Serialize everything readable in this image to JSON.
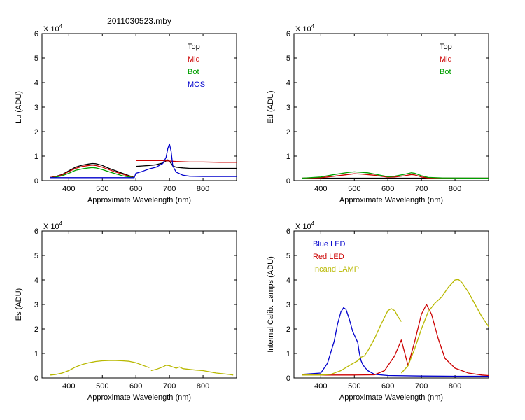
{
  "figure_title": "2011030523.mby",
  "chart_data": [
    {
      "type": "line",
      "panel": "top-left",
      "title": "2011030523.mby",
      "ylabel": "Lu (ADU)",
      "xlabel": "Approximate Wavelength (nm)",
      "exponent_label": "X 10",
      "exponent_power": "4",
      "xlim": [
        320,
        900
      ],
      "ylim": [
        0,
        6
      ],
      "xticks": [
        "400",
        "500",
        "600",
        "700",
        "800"
      ],
      "yticks": [
        "0",
        "1",
        "2",
        "3",
        "4",
        "5",
        "6"
      ],
      "legend_position": "top-right",
      "series": [
        {
          "name": "Top",
          "color": "#000000",
          "x": [
            345,
            360,
            380,
            400,
            420,
            440,
            460,
            470,
            480,
            500,
            520,
            540,
            560,
            580,
            595
          ],
          "y": [
            0.13,
            0.17,
            0.25,
            0.4,
            0.55,
            0.63,
            0.68,
            0.7,
            0.69,
            0.62,
            0.5,
            0.4,
            0.3,
            0.2,
            0.13
          ]
        },
        {
          "name": "Top",
          "color": "#000000",
          "x": [
            600,
            620,
            640,
            660,
            680,
            690,
            695,
            700,
            705,
            710,
            720,
            740,
            760,
            800,
            840,
            900
          ],
          "y": [
            0.58,
            0.6,
            0.62,
            0.65,
            0.72,
            0.8,
            0.85,
            0.8,
            0.7,
            0.6,
            0.55,
            0.52,
            0.5,
            0.5,
            0.5,
            0.5
          ]
        },
        {
          "name": "Mid",
          "color": "#cc0000",
          "x": [
            345,
            360,
            380,
            400,
            420,
            440,
            460,
            470,
            480,
            500,
            520,
            540,
            560,
            580,
            595
          ],
          "y": [
            0.13,
            0.16,
            0.23,
            0.37,
            0.5,
            0.58,
            0.62,
            0.63,
            0.62,
            0.55,
            0.45,
            0.35,
            0.27,
            0.18,
            0.12
          ]
        },
        {
          "name": "Mid",
          "color": "#cc0000",
          "x": [
            600,
            650,
            680,
            700,
            720,
            760,
            800,
            850,
            900
          ],
          "y": [
            0.82,
            0.82,
            0.82,
            0.8,
            0.78,
            0.76,
            0.76,
            0.75,
            0.75
          ]
        },
        {
          "name": "Bot",
          "color": "#00a000",
          "x": [
            345,
            360,
            380,
            400,
            420,
            440,
            460,
            470,
            480,
            500,
            520,
            540,
            560,
            580,
            595
          ],
          "y": [
            0.12,
            0.14,
            0.2,
            0.3,
            0.42,
            0.48,
            0.52,
            0.53,
            0.52,
            0.45,
            0.36,
            0.28,
            0.2,
            0.15,
            0.12
          ]
        },
        {
          "name": "MOS",
          "color": "#0000cc",
          "x": [
            345,
            400,
            500,
            595,
            600,
            620,
            640,
            660,
            680,
            690,
            695,
            700,
            705,
            710,
            720,
            740,
            760,
            800,
            900
          ],
          "y": [
            0.12,
            0.12,
            0.12,
            0.12,
            0.3,
            0.38,
            0.48,
            0.55,
            0.7,
            0.95,
            1.3,
            1.5,
            1.2,
            0.6,
            0.35,
            0.22,
            0.18,
            0.17,
            0.17
          ]
        }
      ]
    },
    {
      "type": "line",
      "panel": "top-right",
      "ylabel": "Ed  (ADU)",
      "xlabel": "Approximate Wavelength (nm)",
      "exponent_label": "X 10",
      "exponent_power": "4",
      "xlim": [
        320,
        900
      ],
      "ylim": [
        0,
        6
      ],
      "xticks": [
        "400",
        "500",
        "600",
        "700",
        "800"
      ],
      "yticks": [
        "0",
        "1",
        "2",
        "3",
        "4",
        "5",
        "6"
      ],
      "legend_position": "top-right",
      "series": [
        {
          "name": "Top",
          "color": "#000000",
          "x": [
            345,
            400,
            450,
            500,
            550,
            600,
            650,
            700,
            750,
            800,
            850,
            900
          ],
          "y": [
            0.1,
            0.1,
            0.1,
            0.1,
            0.1,
            0.1,
            0.1,
            0.1,
            0.1,
            0.1,
            0.1,
            0.1
          ]
        },
        {
          "name": "Mid",
          "color": "#cc0000",
          "x": [
            345,
            400,
            440,
            480,
            500,
            520,
            560,
            600,
            620,
            650,
            670,
            680,
            700,
            720,
            760,
            900
          ],
          "y": [
            0.1,
            0.12,
            0.18,
            0.25,
            0.28,
            0.27,
            0.22,
            0.14,
            0.15,
            0.2,
            0.25,
            0.23,
            0.15,
            0.11,
            0.1,
            0.1
          ]
        },
        {
          "name": "Bot",
          "color": "#00a000",
          "x": [
            345,
            400,
            440,
            480,
            500,
            520,
            540,
            560,
            600,
            620,
            650,
            670,
            680,
            700,
            720,
            760,
            900
          ],
          "y": [
            0.1,
            0.15,
            0.25,
            0.33,
            0.36,
            0.34,
            0.32,
            0.27,
            0.16,
            0.18,
            0.26,
            0.32,
            0.3,
            0.2,
            0.13,
            0.11,
            0.1
          ]
        }
      ]
    },
    {
      "type": "line",
      "panel": "bottom-left",
      "ylabel": "Es  (ADU)",
      "xlabel": "Approximate Wavelength (nm)",
      "exponent_label": "X 10",
      "exponent_power": "4",
      "xlim": [
        320,
        900
      ],
      "ylim": [
        0,
        6
      ],
      "xticks": [
        "400",
        "500",
        "600",
        "700",
        "800"
      ],
      "yticks": [
        "0",
        "1",
        "2",
        "3",
        "4",
        "5",
        "6"
      ],
      "series": [
        {
          "name": "Es",
          "color": "#b8b800",
          "x": [
            345,
            360,
            380,
            400,
            420,
            440,
            460,
            480,
            500,
            520,
            540,
            560,
            580,
            600,
            620,
            640
          ],
          "y": [
            0.12,
            0.14,
            0.2,
            0.3,
            0.45,
            0.55,
            0.62,
            0.67,
            0.7,
            0.71,
            0.71,
            0.7,
            0.68,
            0.62,
            0.52,
            0.42
          ]
        },
        {
          "name": "Es",
          "color": "#b8b800",
          "x": [
            645,
            660,
            680,
            690,
            700,
            710,
            720,
            730,
            740,
            760,
            780,
            800,
            820,
            840,
            860,
            880,
            890
          ],
          "y": [
            0.3,
            0.35,
            0.45,
            0.52,
            0.5,
            0.45,
            0.4,
            0.45,
            0.38,
            0.35,
            0.32,
            0.3,
            0.25,
            0.2,
            0.17,
            0.14,
            0.12
          ]
        }
      ]
    },
    {
      "type": "line",
      "panel": "bottom-right",
      "ylabel": "Internal Calib. Lamps (ADU)",
      "xlabel": "Approximate Wavelength (nm)",
      "exponent_label": "X 10",
      "exponent_power": "4",
      "xlim": [
        320,
        900
      ],
      "ylim": [
        0,
        6
      ],
      "xticks": [
        "400",
        "500",
        "600",
        "700",
        "800"
      ],
      "yticks": [
        "0",
        "1",
        "2",
        "3",
        "4",
        "5",
        "6"
      ],
      "legend_position": "top-left",
      "series": [
        {
          "name": "Blue LED",
          "color": "#0000cc",
          "x": [
            345,
            400,
            420,
            440,
            450,
            460,
            468,
            475,
            485,
            495,
            505,
            510,
            515,
            520,
            525,
            530,
            540,
            560,
            600,
            700,
            800,
            900
          ],
          "y": [
            0.15,
            0.2,
            0.6,
            1.5,
            2.2,
            2.7,
            2.87,
            2.8,
            2.4,
            1.9,
            1.6,
            1.45,
            1.0,
            0.7,
            0.55,
            0.45,
            0.3,
            0.15,
            0.1,
            0.08,
            0.07,
            0.07
          ]
        },
        {
          "name": "Red LED",
          "color": "#cc0000",
          "x": [
            345,
            500,
            560,
            590,
            620,
            640,
            660,
            680,
            700,
            715,
            730,
            750,
            770,
            800,
            840,
            880,
            900
          ],
          "y": [
            0.12,
            0.12,
            0.13,
            0.3,
            0.9,
            1.55,
            0.5,
            1.5,
            2.6,
            3.0,
            2.6,
            1.6,
            0.8,
            0.4,
            0.2,
            0.12,
            0.1
          ]
        },
        {
          "name": "Incand LAMP",
          "color": "#b8b800",
          "x": [
            345,
            400,
            430,
            460,
            490,
            510,
            520,
            530,
            540,
            560,
            580,
            600,
            610,
            620,
            630,
            640
          ],
          "y": [
            0.12,
            0.12,
            0.15,
            0.3,
            0.55,
            0.7,
            0.85,
            0.9,
            1.1,
            1.6,
            2.2,
            2.75,
            2.83,
            2.75,
            2.5,
            2.3
          ]
        },
        {
          "name": "Incand LAMP",
          "color": "#b8b800",
          "x": [
            640,
            660,
            680,
            700,
            720,
            740,
            760,
            780,
            800,
            810,
            820,
            840,
            860,
            880,
            900
          ],
          "y": [
            0.2,
            0.5,
            1.2,
            2.0,
            2.7,
            3.05,
            3.3,
            3.7,
            4.0,
            4.02,
            3.9,
            3.5,
            3.0,
            2.5,
            2.1
          ]
        }
      ]
    }
  ]
}
